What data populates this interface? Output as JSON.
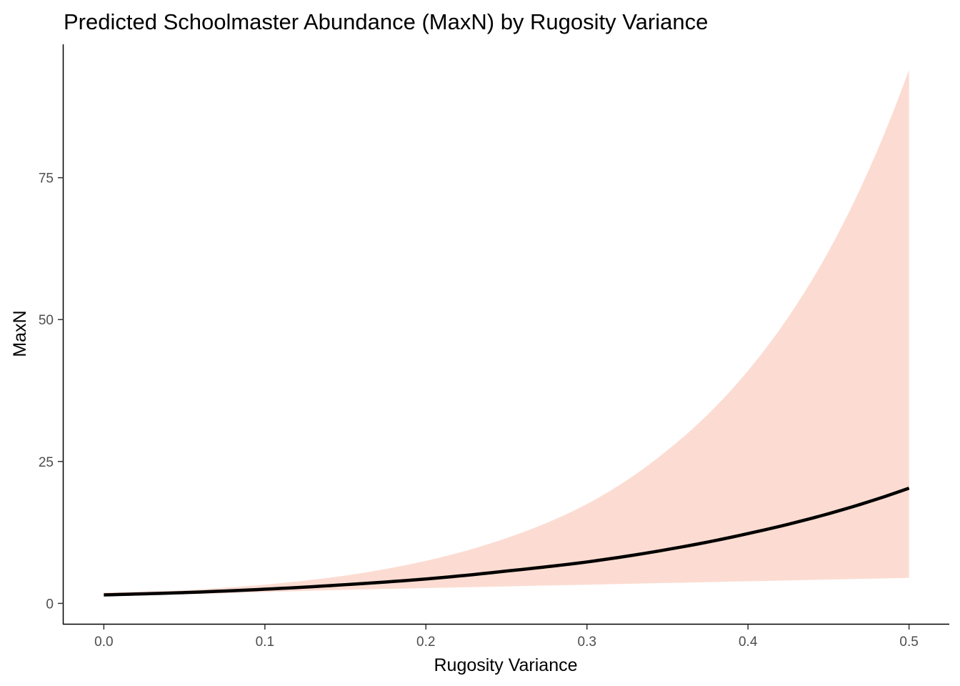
{
  "chart_data": {
    "type": "area",
    "title": "Predicted Schoolmaster Abundance (MaxN) by Rugosity Variance",
    "xlabel": "Rugosity Variance",
    "ylabel": "MaxN",
    "xlim": [
      -0.025,
      0.525
    ],
    "ylim": [
      -3.6,
      98.5
    ],
    "x_ticks": [
      "0.0",
      "0.1",
      "0.2",
      "0.3",
      "0.4",
      "0.5"
    ],
    "y_ticks": [
      "0",
      "25",
      "50",
      "75"
    ],
    "x_tick_values": [
      0,
      0.1,
      0.2,
      0.3,
      0.4,
      0.5
    ],
    "y_tick_values": [
      0,
      25,
      50,
      75
    ],
    "grid": false,
    "legend": "none",
    "series": [
      {
        "x": [
          0,
          0.05,
          0.1,
          0.15,
          0.2,
          0.25,
          0.3,
          0.35,
          0.4,
          0.45,
          0.5
        ],
        "fit": [
          1.5,
          1.9,
          2.5,
          3.3,
          4.3,
          5.7,
          7.3,
          9.5,
          12.3,
          15.8,
          20.3
        ],
        "lower": [
          1.2,
          1.6,
          2.0,
          2.4,
          2.7,
          3.0,
          3.3,
          3.6,
          3.9,
          4.2,
          4.5
        ],
        "upper": [
          1.9,
          2.3,
          3.3,
          4.9,
          7.5,
          11.5,
          17.5,
          27.0,
          41.0,
          62.0,
          94.0
        ]
      }
    ],
    "colors": {
      "ribbon": "#fcdcd2",
      "line": "#000000",
      "axis": "#000000",
      "tick_label": "#4d4d4d"
    }
  }
}
